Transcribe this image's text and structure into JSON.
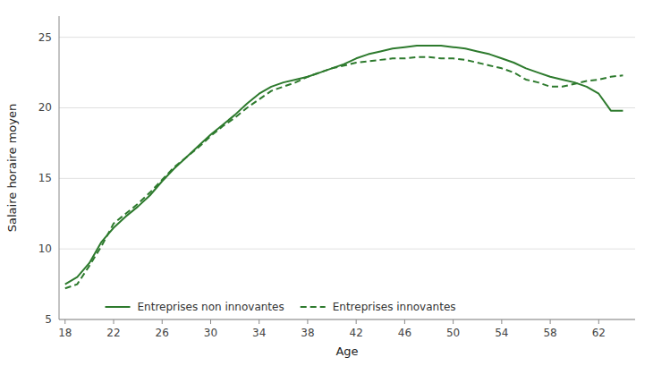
{
  "chart_data": {
    "type": "line",
    "x": [
      18,
      19,
      20,
      21,
      22,
      23,
      24,
      25,
      26,
      27,
      28,
      29,
      30,
      31,
      32,
      33,
      34,
      35,
      36,
      37,
      38,
      39,
      40,
      41,
      42,
      43,
      44,
      45,
      46,
      47,
      48,
      49,
      50,
      51,
      52,
      53,
      54,
      55,
      56,
      57,
      58,
      59,
      60,
      61,
      62,
      63,
      64
    ],
    "series": [
      {
        "name": "Entreprises non innovantes",
        "color": "#2d7a2d",
        "line_style": "solid",
        "values": [
          7.5,
          8.0,
          9.0,
          10.5,
          11.5,
          12.3,
          13.0,
          13.8,
          14.8,
          15.7,
          16.5,
          17.3,
          18.1,
          18.8,
          19.5,
          20.3,
          21.0,
          21.5,
          21.8,
          22.0,
          22.2,
          22.5,
          22.8,
          23.1,
          23.5,
          23.8,
          24.0,
          24.2,
          24.3,
          24.4,
          24.4,
          24.4,
          24.3,
          24.2,
          24.0,
          23.8,
          23.5,
          23.2,
          22.8,
          22.5,
          22.2,
          22.0,
          21.8,
          21.5,
          21.0,
          19.8,
          19.8
        ]
      },
      {
        "name": "Entreprises innovantes",
        "color": "#2d7a2d",
        "line_style": "dashed",
        "values": [
          7.2,
          7.5,
          8.8,
          10.2,
          11.8,
          12.5,
          13.2,
          14.0,
          14.9,
          15.8,
          16.5,
          17.2,
          18.0,
          18.7,
          19.3,
          20.0,
          20.6,
          21.2,
          21.5,
          21.8,
          22.2,
          22.5,
          22.8,
          23.0,
          23.2,
          23.3,
          23.4,
          23.5,
          23.5,
          23.6,
          23.6,
          23.5,
          23.5,
          23.4,
          23.2,
          23.0,
          22.8,
          22.5,
          22.0,
          21.8,
          21.5,
          21.5,
          21.7,
          21.9,
          22.0,
          22.2,
          22.3
        ]
      }
    ],
    "xlabel": "Age",
    "ylabel": "Salaire horaire moyen",
    "xlim": [
      17.5,
      65
    ],
    "ylim": [
      5,
      26.5
    ],
    "xticks": [
      18,
      22,
      26,
      30,
      34,
      38,
      42,
      46,
      50,
      54,
      58,
      62
    ],
    "yticks": [
      5,
      10,
      15,
      20,
      25
    ],
    "grid": true,
    "legend": "lower left"
  }
}
